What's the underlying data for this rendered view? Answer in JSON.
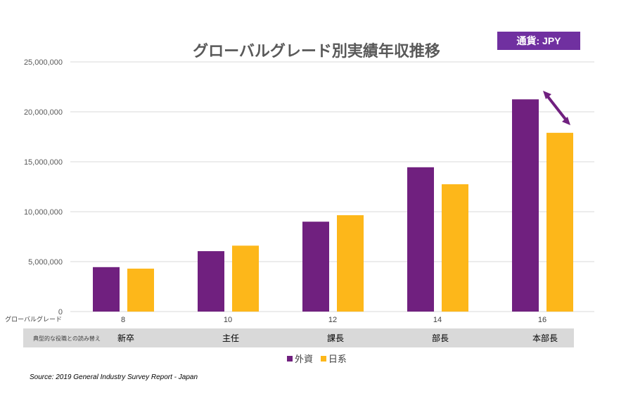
{
  "chart_data": {
    "type": "bar",
    "title": "グローバルグレード別実績年収推移",
    "currency_label": "通貨: JPY",
    "row_labels": {
      "grade": "グローバルグレード",
      "role": "典型的な役職との読み替え"
    },
    "categories": [
      "8",
      "10",
      "12",
      "14",
      "16"
    ],
    "roles": [
      "新卒",
      "主任",
      "課長",
      "部長",
      "本部長"
    ],
    "series": [
      {
        "name": "外資",
        "color": "#70207f",
        "values": [
          4450000,
          6050000,
          9000000,
          14450000,
          21250000
        ]
      },
      {
        "name": "日系",
        "color": "#fdb71a",
        "values": [
          4300000,
          6600000,
          9650000,
          12750000,
          17900000
        ]
      }
    ],
    "ylim": [
      0,
      25000000
    ],
    "yticks": [
      "0",
      "5,000,000",
      "10,000,000",
      "15,000,000",
      "20,000,000",
      "25,000,000"
    ],
    "grid": true,
    "legend": "bottom",
    "annotation_arrow_color": "#70207f",
    "source": "Source: 2019 General Industry Survey Report - Japan"
  }
}
